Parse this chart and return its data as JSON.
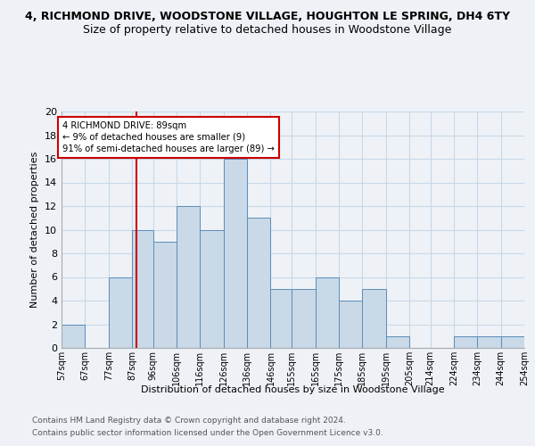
{
  "title": "4, RICHMOND DRIVE, WOODSTONE VILLAGE, HOUGHTON LE SPRING, DH4 6TY",
  "subtitle": "Size of property relative to detached houses in Woodstone Village",
  "xlabel": "Distribution of detached houses by size in Woodstone Village",
  "ylabel": "Number of detached properties",
  "bin_labels": [
    "57sqm",
    "67sqm",
    "77sqm",
    "87sqm",
    "96sqm",
    "106sqm",
    "116sqm",
    "126sqm",
    "136sqm",
    "146sqm",
    "155sqm",
    "165sqm",
    "175sqm",
    "185sqm",
    "195sqm",
    "205sqm",
    "214sqm",
    "224sqm",
    "234sqm",
    "244sqm",
    "254sqm"
  ],
  "bin_edges": [
    57,
    67,
    77,
    87,
    96,
    106,
    116,
    126,
    136,
    146,
    155,
    165,
    175,
    185,
    195,
    205,
    214,
    224,
    234,
    244,
    254
  ],
  "counts": [
    2,
    0,
    6,
    10,
    9,
    12,
    10,
    16,
    11,
    5,
    5,
    6,
    4,
    5,
    1,
    0,
    0,
    1,
    1,
    1
  ],
  "bar_color": "#c9d9e8",
  "bar_edge_color": "#5b8db8",
  "grid_color": "#c8d8e8",
  "subject_value": 89,
  "subject_line_color": "#cc0000",
  "annotation_text": "4 RICHMOND DRIVE: 89sqm\n← 9% of detached houses are smaller (9)\n91% of semi-detached houses are larger (89) →",
  "annotation_box_color": "#ffffff",
  "annotation_box_edge_color": "#cc0000",
  "ylim": [
    0,
    20
  ],
  "yticks": [
    0,
    2,
    4,
    6,
    8,
    10,
    12,
    14,
    16,
    18,
    20
  ],
  "footer_line1": "Contains HM Land Registry data © Crown copyright and database right 2024.",
  "footer_line2": "Contains public sector information licensed under the Open Government Licence v3.0.",
  "title_fontsize": 9,
  "subtitle_fontsize": 9,
  "background_color": "#eef2f7"
}
